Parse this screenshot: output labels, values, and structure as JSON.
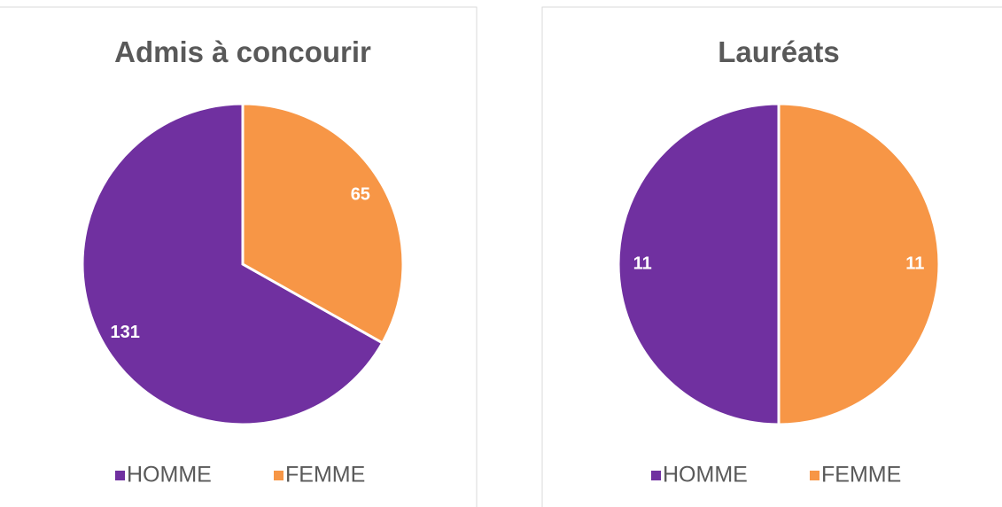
{
  "chart_data": [
    {
      "type": "pie",
      "title": "Admis à concourir",
      "categories": [
        "HOMME",
        "FEMME"
      ],
      "values": [
        131,
        65
      ],
      "colors": [
        "#7030a0",
        "#f79646"
      ],
      "direction": "counterclockwise",
      "legend": "bottom"
    },
    {
      "type": "pie",
      "title": "Lauréats",
      "categories": [
        "HOMME",
        "FEMME"
      ],
      "values": [
        11,
        11
      ],
      "colors": [
        "#7030a0",
        "#f79646"
      ],
      "direction": "counterclockwise",
      "legend": "bottom"
    }
  ]
}
